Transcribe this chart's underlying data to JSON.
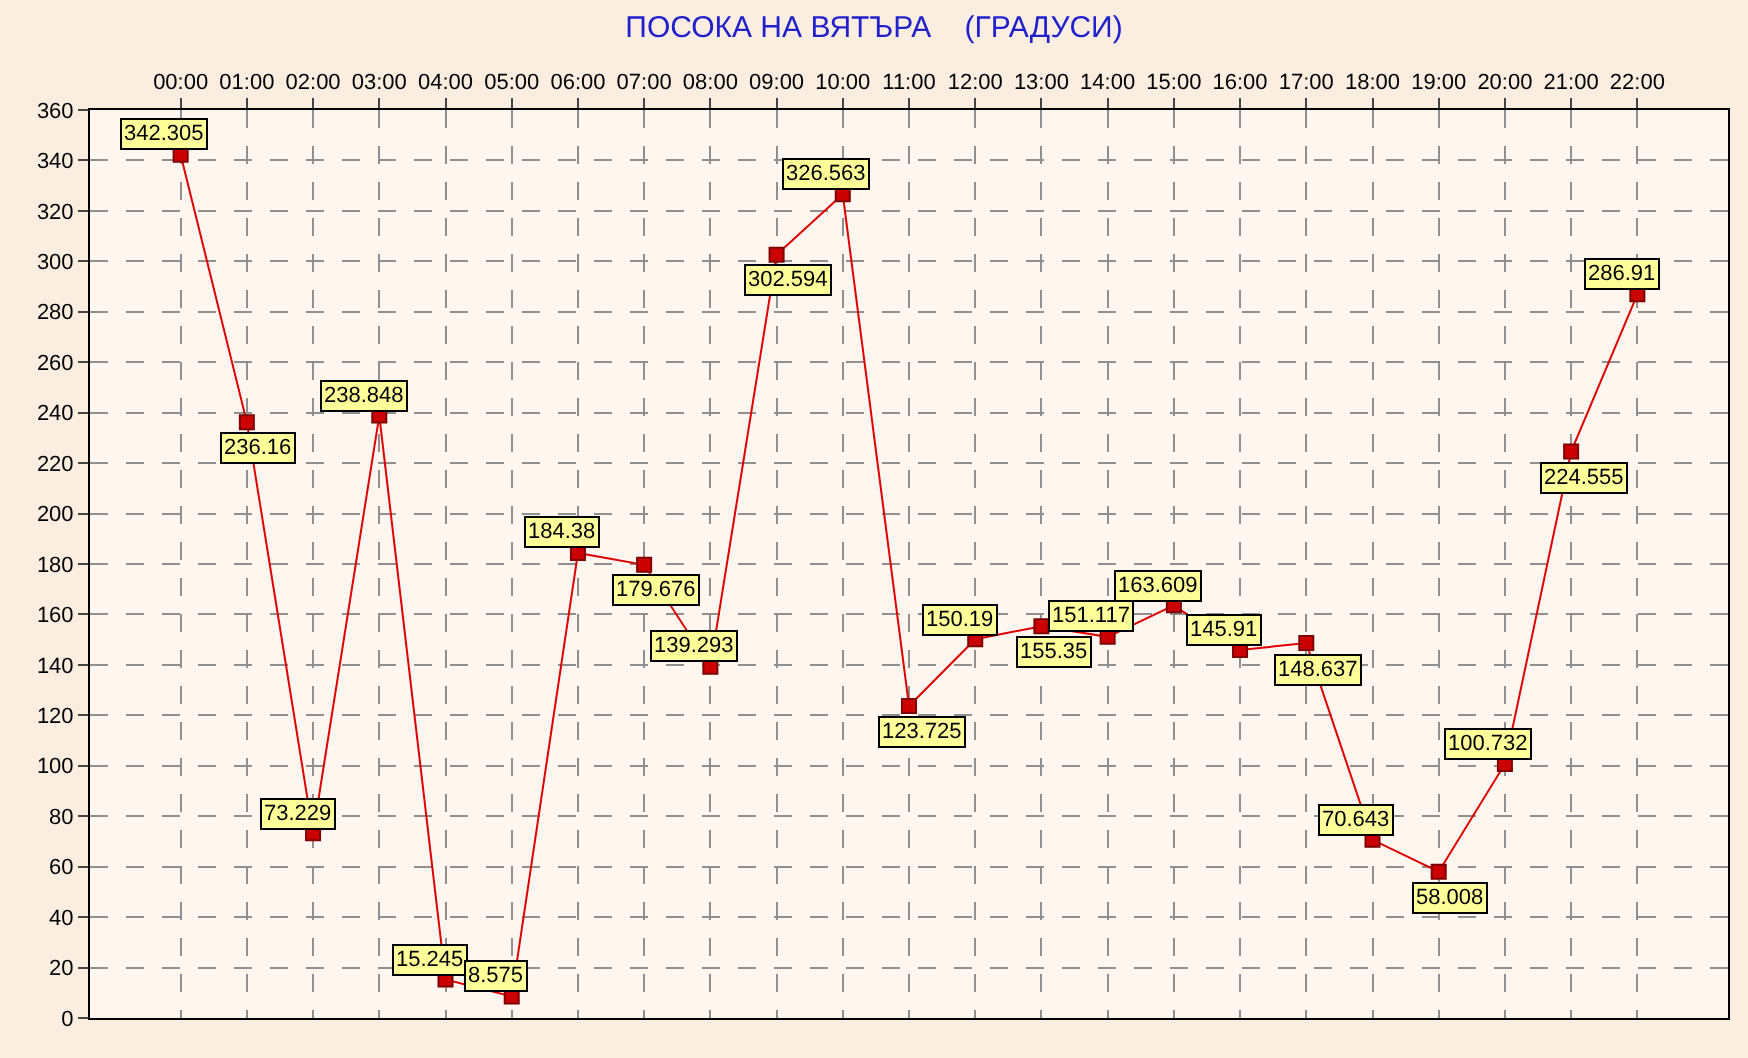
{
  "chart_data": {
    "type": "line",
    "title": "ПОСОКА НА ВЯТЪРА    (ГРАДУСИ)",
    "categories": [
      "00:00",
      "01:00",
      "02:00",
      "03:00",
      "04:00",
      "05:00",
      "06:00",
      "07:00",
      "08:00",
      "09:00",
      "10:00",
      "11:00",
      "12:00",
      "13:00",
      "14:00",
      "15:00",
      "16:00",
      "17:00",
      "18:00",
      "19:00",
      "20:00",
      "21:00",
      "22:00"
    ],
    "series": [
      {
        "color": "#dd0000",
        "values": [
          342.305,
          236.16,
          73.229,
          238.848,
          15.245,
          8.575,
          184.38,
          179.676,
          139.293,
          302.594,
          326.563,
          123.725,
          150.19,
          155.35,
          151.117,
          163.609,
          145.91,
          148.637,
          70.643,
          58.008,
          100.732,
          224.555,
          286.91
        ],
        "value_labels": [
          "342.305",
          "236.16",
          "73.229",
          "238.848",
          "15.245",
          "8.575",
          "184.38",
          "179.676",
          "139.293",
          "302.594",
          "326.563",
          "123.725",
          "150.19",
          "155.35",
          "151.117",
          "163.609",
          "145.91",
          "148.637",
          "70.643",
          "58.008",
          "100.732",
          "224.555",
          "286.91"
        ]
      }
    ],
    "ylim": [
      0,
      360
    ],
    "yticks": [
      0,
      20,
      40,
      60,
      80,
      100,
      120,
      140,
      160,
      180,
      200,
      220,
      240,
      260,
      280,
      300,
      320,
      340,
      360
    ],
    "grid": true,
    "legend": false,
    "marker": "square",
    "line_style": "solid"
  }
}
